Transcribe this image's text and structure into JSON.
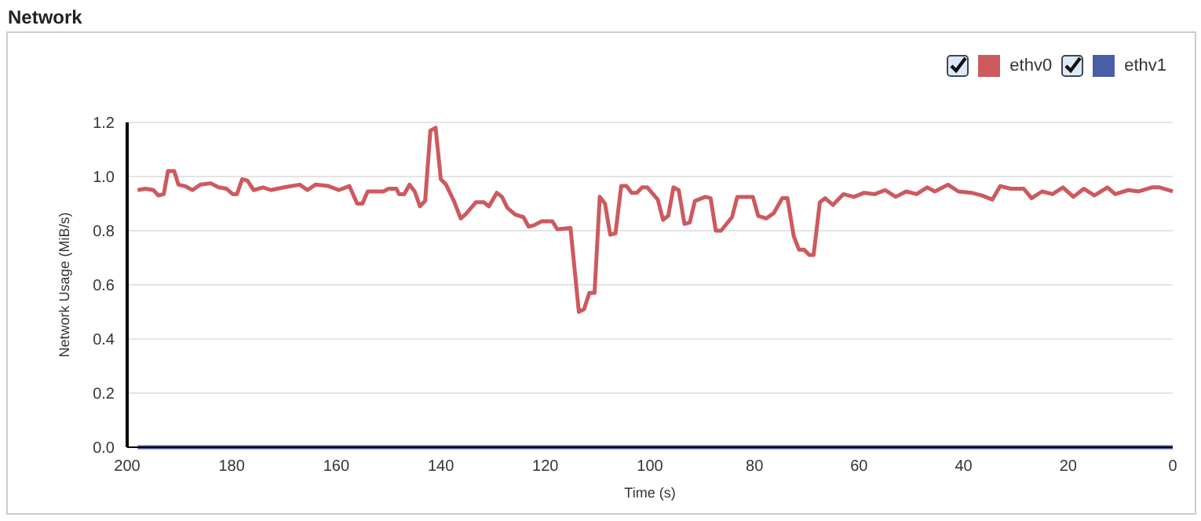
{
  "chart_data": {
    "type": "line",
    "title": "Network",
    "xlabel": "Time (s)",
    "ylabel": "Network Usage (MiB/s)",
    "xlim": [
      200,
      0
    ],
    "xticks": [
      200,
      180,
      160,
      140,
      120,
      100,
      80,
      60,
      40,
      20,
      0
    ],
    "ylim": [
      0,
      1.2
    ],
    "yticks": [
      {
        "value": 0,
        "label": "0.0"
      },
      0.2,
      0.4,
      0.6,
      0.8,
      {
        "value": 1,
        "label": "1.0"
      },
      1.2
    ],
    "grid": "y",
    "legend": "top right",
    "marker": "none",
    "line_style": "solid",
    "series": [
      {
        "name": "ethv0",
        "color": "#cc5a5e",
        "x": [
          198,
          196.5,
          195,
          194,
          193,
          192.2,
          191,
          190.2,
          189,
          187.5,
          186,
          184,
          182.5,
          181,
          179.8,
          179,
          178,
          177,
          175.8,
          174,
          172.5,
          170,
          167,
          165.5,
          164,
          161.5,
          159.5,
          157.5,
          156,
          155,
          154,
          151,
          150,
          148.5,
          148,
          147,
          146,
          145,
          144,
          143,
          142,
          141,
          140,
          139,
          137.5,
          136.2,
          135.3,
          133.3,
          131.8,
          130.8,
          129.3,
          128.3,
          127.3,
          125.8,
          124.2,
          123.2,
          122.2,
          120.7,
          118.7,
          117.7,
          115.2,
          113.6,
          112.6,
          111.6,
          110.6,
          109.6,
          108.6,
          107.6,
          106.6,
          105.5,
          104.5,
          103.5,
          102.5,
          101.5,
          100.5,
          98.5,
          97.5,
          96.5,
          95.5,
          94.5,
          93.4,
          92.4,
          91.4,
          89.4,
          88.4,
          87.4,
          86.4,
          84.3,
          83.3,
          80.3,
          79.3,
          77.8,
          76.3,
          74.7,
          73.7,
          72.5,
          71.5,
          70.5,
          69.5,
          68.7,
          67.5,
          66.5,
          65,
          63,
          61,
          59,
          57,
          55,
          53,
          51,
          49,
          47,
          45.5,
          43,
          41,
          38.5,
          36.5,
          34.5,
          33,
          31,
          28.5,
          27,
          25,
          23,
          21,
          19,
          17,
          15,
          12.5,
          11,
          8.5,
          6.5,
          4,
          2.5,
          0
        ],
        "values": [
          0.95,
          0.955,
          0.95,
          0.93,
          0.935,
          1.02,
          1.02,
          0.97,
          0.965,
          0.95,
          0.97,
          0.975,
          0.96,
          0.955,
          0.935,
          0.935,
          0.99,
          0.985,
          0.95,
          0.96,
          0.95,
          0.96,
          0.97,
          0.95,
          0.97,
          0.965,
          0.95,
          0.965,
          0.9,
          0.9,
          0.945,
          0.945,
          0.955,
          0.955,
          0.935,
          0.935,
          0.97,
          0.945,
          0.89,
          0.91,
          1.17,
          1.18,
          0.99,
          0.97,
          0.91,
          0.845,
          0.86,
          0.905,
          0.905,
          0.89,
          0.94,
          0.925,
          0.885,
          0.86,
          0.85,
          0.815,
          0.82,
          0.835,
          0.835,
          0.805,
          0.81,
          0.5,
          0.51,
          0.57,
          0.57,
          0.925,
          0.9,
          0.785,
          0.79,
          0.965,
          0.965,
          0.94,
          0.94,
          0.96,
          0.96,
          0.915,
          0.84,
          0.855,
          0.96,
          0.95,
          0.825,
          0.83,
          0.91,
          0.925,
          0.92,
          0.8,
          0.8,
          0.85,
          0.925,
          0.925,
          0.855,
          0.845,
          0.865,
          0.92,
          0.92,
          0.78,
          0.73,
          0.73,
          0.71,
          0.71,
          0.905,
          0.92,
          0.895,
          0.935,
          0.925,
          0.94,
          0.935,
          0.95,
          0.925,
          0.945,
          0.935,
          0.96,
          0.945,
          0.97,
          0.945,
          0.94,
          0.93,
          0.915,
          0.965,
          0.955,
          0.955,
          0.92,
          0.945,
          0.935,
          0.96,
          0.925,
          0.955,
          0.93,
          0.96,
          0.935,
          0.95,
          0.945,
          0.96,
          0.96,
          0.945
        ]
      },
      {
        "name": "ethv1",
        "color": "#4a5ea6",
        "x": [
          198,
          0
        ],
        "values": [
          0,
          0
        ]
      }
    ]
  }
}
